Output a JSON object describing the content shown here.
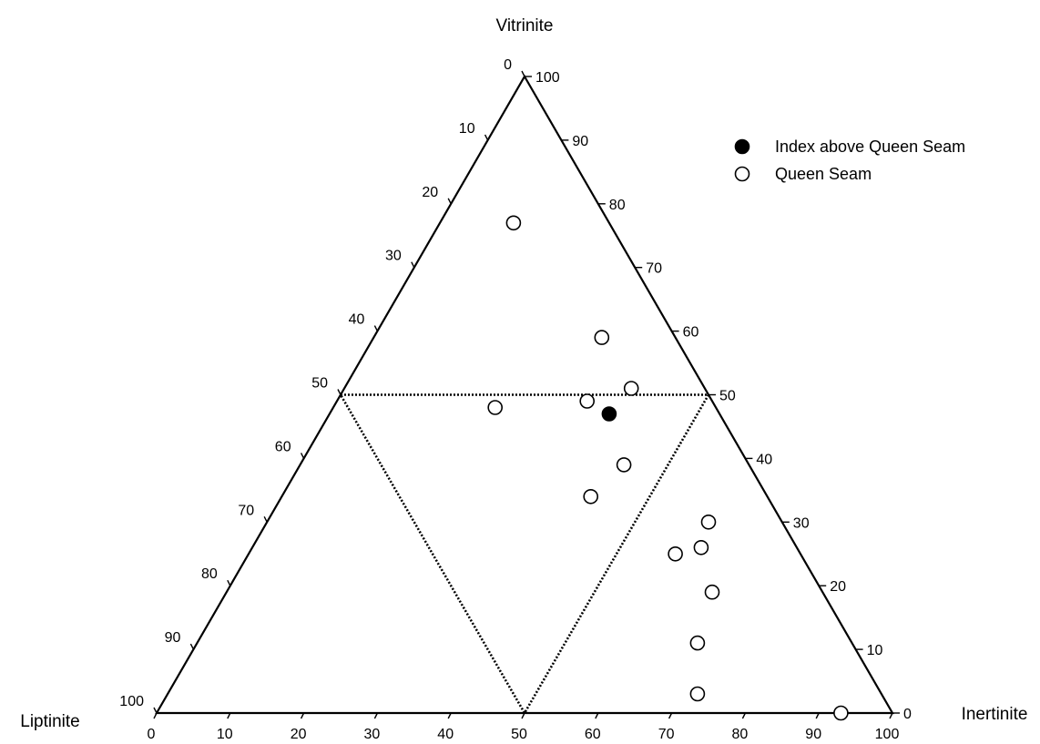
{
  "chart_data": {
    "type": "scatter",
    "subtype": "ternary",
    "axes": {
      "top": "Vitrinite",
      "right": "Inertinite",
      "left": "Liptinite"
    },
    "ticks": {
      "vitrinite": [
        "0",
        "10",
        "20",
        "30",
        "40",
        "50",
        "60",
        "70",
        "80",
        "90",
        "100"
      ],
      "inertinite": [
        "0",
        "10",
        "20",
        "30",
        "40",
        "50",
        "60",
        "70",
        "80",
        "90",
        "100"
      ],
      "liptinite": [
        "0",
        "10",
        "20",
        "30",
        "40",
        "50",
        "60",
        "70",
        "80",
        "90",
        "100"
      ]
    },
    "range": [
      0,
      100
    ],
    "guide_triangle": {
      "style": "dotted",
      "vertices": [
        {
          "vitrinite": 50,
          "inertinite": 0,
          "liptinite": 50
        },
        {
          "vitrinite": 50,
          "inertinite": 50,
          "liptinite": 0
        },
        {
          "vitrinite": 0,
          "inertinite": 50,
          "liptinite": 50
        }
      ]
    },
    "legend": {
      "position": "top-right",
      "entries": [
        {
          "label": "Index above Queen Seam",
          "marker": "filled-circle"
        },
        {
          "label": "Queen Seam",
          "marker": "open-circle"
        }
      ]
    },
    "series": [
      {
        "name": "Index above Queen Seam",
        "marker": "filled",
        "color": "#000000",
        "points": [
          {
            "vitrinite": 47,
            "inertinite": 38
          }
        ]
      },
      {
        "name": "Queen Seam",
        "marker": "open",
        "color": "#000000",
        "points": [
          {
            "vitrinite": 77,
            "inertinite": 10
          },
          {
            "vitrinite": 59,
            "inertinite": 31
          },
          {
            "vitrinite": 51,
            "inertinite": 39
          },
          {
            "vitrinite": 49,
            "inertinite": 34
          },
          {
            "vitrinite": 48,
            "inertinite": 22
          },
          {
            "vitrinite": 39,
            "inertinite": 44
          },
          {
            "vitrinite": 34,
            "inertinite": 42
          },
          {
            "vitrinite": 30,
            "inertinite": 60
          },
          {
            "vitrinite": 26,
            "inertinite": 61
          },
          {
            "vitrinite": 25,
            "inertinite": 58
          },
          {
            "vitrinite": 19,
            "inertinite": 66
          },
          {
            "vitrinite": 11,
            "inertinite": 68
          },
          {
            "vitrinite": 3,
            "inertinite": 72
          },
          {
            "vitrinite": 0,
            "inertinite": 93
          }
        ]
      }
    ]
  }
}
